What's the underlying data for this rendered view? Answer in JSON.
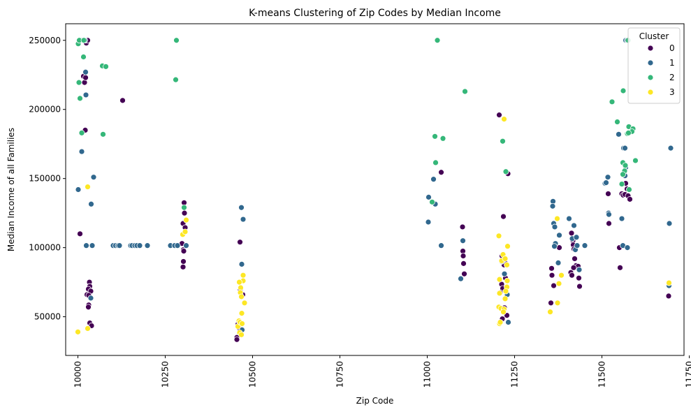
{
  "chart_data": {
    "type": "scatter",
    "title": "K-means Clustering of Zip Codes by Median Income",
    "xlabel": "Zip Code",
    "ylabel": "Median Income of all Families",
    "xlim": [
      9965,
      11735
    ],
    "ylim": [
      22000,
      262000
    ],
    "xticks": [
      10000,
      10250,
      10500,
      10750,
      11000,
      11250,
      11500,
      11750
    ],
    "yticks": [
      50000,
      100000,
      150000,
      200000,
      250000
    ],
    "grid": false,
    "legend": {
      "title": "Cluster",
      "position": "top-right"
    },
    "series": [
      {
        "name": "0",
        "color": "#440154",
        "points": [
          [
            10010,
            250000
          ],
          [
            10021,
            250000
          ],
          [
            10024,
            248000
          ],
          [
            10028,
            250000
          ],
          [
            10016,
            224000
          ],
          [
            10019,
            219500
          ],
          [
            10022,
            223000
          ],
          [
            10021,
            185000
          ],
          [
            10006,
            110000
          ],
          [
            10033,
            75000
          ],
          [
            10034,
            72000
          ],
          [
            10030,
            70000
          ],
          [
            10037,
            68500
          ],
          [
            10026,
            66000
          ],
          [
            10031,
            65500
          ],
          [
            10031,
            58500
          ],
          [
            10030,
            57000
          ],
          [
            10034,
            45500
          ],
          [
            10039,
            43500
          ],
          [
            10128,
            206500
          ],
          [
            10304,
            132500
          ],
          [
            10305,
            125000
          ],
          [
            10301,
            117500
          ],
          [
            10307,
            114500
          ],
          [
            10298,
            103000
          ],
          [
            10302,
            98500
          ],
          [
            10303,
            97500
          ],
          [
            10302,
            90000
          ],
          [
            10301,
            86000
          ],
          [
            10464,
            104000
          ],
          [
            10465,
            69500
          ],
          [
            10458,
            44500
          ],
          [
            10461,
            42000
          ],
          [
            10455,
            35000
          ],
          [
            10455,
            33500
          ],
          [
            10472,
            66000
          ],
          [
            11040,
            154500
          ],
          [
            11101,
            115000
          ],
          [
            11102,
            97500
          ],
          [
            11103,
            94000
          ],
          [
            11104,
            88500
          ],
          [
            11106,
            81000
          ],
          [
            11206,
            196000
          ],
          [
            11218,
            122500
          ],
          [
            11231,
            153500
          ],
          [
            11214,
            94000
          ],
          [
            11222,
            89500
          ],
          [
            11220,
            87500
          ],
          [
            11224,
            78000
          ],
          [
            11213,
            73500
          ],
          [
            11216,
            70500
          ],
          [
            11209,
            67500
          ],
          [
            11221,
            56500
          ],
          [
            11228,
            51000
          ],
          [
            11215,
            48500
          ],
          [
            11356,
            85000
          ],
          [
            11357,
            80000
          ],
          [
            11362,
            72500
          ],
          [
            11354,
            60000
          ],
          [
            11378,
            100000
          ],
          [
            11413,
            110500
          ],
          [
            11417,
            105000
          ],
          [
            11418,
            102000
          ],
          [
            11420,
            99000
          ],
          [
            11422,
            92000
          ],
          [
            11426,
            87000
          ],
          [
            11432,
            86500
          ],
          [
            11411,
            82000
          ],
          [
            11414,
            80000
          ],
          [
            11419,
            85500
          ],
          [
            11434,
            78000
          ],
          [
            11436,
            72000
          ],
          [
            11518,
            139000
          ],
          [
            11520,
            117500
          ],
          [
            11552,
            85500
          ],
          [
            11550,
            100000
          ],
          [
            11557,
            139000
          ],
          [
            11561,
            138000
          ],
          [
            11568,
            146500
          ],
          [
            11572,
            142500
          ],
          [
            11566,
            138500
          ],
          [
            11575,
            137500
          ],
          [
            11580,
            135000
          ],
          [
            11691,
            65000
          ]
        ]
      },
      {
        "name": "1",
        "color": "#31688e",
        "points": [
          [
            10001,
            142000
          ],
          [
            10003,
            250000
          ],
          [
            10013,
            250000
          ],
          [
            10022,
            227000
          ],
          [
            10023,
            210500
          ],
          [
            10011,
            169500
          ],
          [
            10024,
            101500
          ],
          [
            10041,
            101500
          ],
          [
            10045,
            151000
          ],
          [
            10038,
            131500
          ],
          [
            10037,
            63500
          ],
          [
            10020,
            250000
          ],
          [
            10101,
            101500
          ],
          [
            10108,
            101500
          ],
          [
            10115,
            101500
          ],
          [
            10119,
            101500
          ],
          [
            10151,
            101500
          ],
          [
            10155,
            101500
          ],
          [
            10163,
            101500
          ],
          [
            10169,
            101500
          ],
          [
            10177,
            101500
          ],
          [
            10199,
            101500
          ],
          [
            10265,
            101500
          ],
          [
            10277,
            101500
          ],
          [
            10285,
            101500
          ],
          [
            10310,
            101500
          ],
          [
            10468,
            129000
          ],
          [
            10473,
            120500
          ],
          [
            10469,
            88000
          ],
          [
            10470,
            40500
          ],
          [
            11004,
            136500
          ],
          [
            11003,
            118500
          ],
          [
            11018,
            149500
          ],
          [
            11023,
            131500
          ],
          [
            11040,
            101500
          ],
          [
            11096,
            77500
          ],
          [
            11102,
            105000
          ],
          [
            11213,
            90000
          ],
          [
            11221,
            81000
          ],
          [
            11229,
            66000
          ],
          [
            11232,
            46000
          ],
          [
            11360,
            133500
          ],
          [
            11359,
            130000
          ],
          [
            11362,
            117500
          ],
          [
            11365,
            115000
          ],
          [
            11367,
            103000
          ],
          [
            11364,
            101000
          ],
          [
            11375,
            89000
          ],
          [
            11378,
            109000
          ],
          [
            11406,
            121000
          ],
          [
            11415,
            106500
          ],
          [
            11420,
            116000
          ],
          [
            11427,
            107500
          ],
          [
            11424,
            98500
          ],
          [
            11435,
            84000
          ],
          [
            11429,
            101500
          ],
          [
            11451,
            101500
          ],
          [
            11509,
            146500
          ],
          [
            11517,
            151000
          ],
          [
            11512,
            147000
          ],
          [
            11519,
            125000
          ],
          [
            11520,
            124000
          ],
          [
            11548,
            182000
          ],
          [
            11557,
            121000
          ],
          [
            11561,
            101500
          ],
          [
            11560,
            101500
          ],
          [
            11562,
            172000
          ],
          [
            11566,
            172000
          ],
          [
            11568,
            158000
          ],
          [
            11566,
            152000
          ],
          [
            11568,
            250000
          ],
          [
            11572,
            250000
          ],
          [
            11573,
            100000
          ],
          [
            11697,
            172000
          ],
          [
            11693,
            117500
          ],
          [
            11692,
            72500
          ]
        ]
      },
      {
        "name": "2",
        "color": "#35b779",
        "points": [
          [
            10001,
            247500
          ],
          [
            10004,
            250000
          ],
          [
            10017,
            250000
          ],
          [
            10016,
            238000
          ],
          [
            10003,
            219500
          ],
          [
            10006,
            208000
          ],
          [
            10011,
            183000
          ],
          [
            10070,
            231500
          ],
          [
            10080,
            231000
          ],
          [
            10072,
            182000
          ],
          [
            10282,
            250000
          ],
          [
            10280,
            221500
          ],
          [
            10304,
            129000
          ],
          [
            11029,
            250000
          ],
          [
            11022,
            180500
          ],
          [
            11045,
            179000
          ],
          [
            11024,
            161500
          ],
          [
            11014,
            133000
          ],
          [
            11108,
            213000
          ],
          [
            11216,
            177000
          ],
          [
            11225,
            155000
          ],
          [
            11529,
            205500
          ],
          [
            11561,
            213500
          ],
          [
            11544,
            191000
          ],
          [
            11577,
            187500
          ],
          [
            11589,
            186000
          ],
          [
            11560,
            161500
          ],
          [
            11567,
            159500
          ],
          [
            11565,
            155500
          ],
          [
            11573,
            182500
          ],
          [
            11586,
            184000
          ],
          [
            11576,
            183000
          ],
          [
            11557,
            146000
          ],
          [
            11560,
            153000
          ],
          [
            11578,
            142000
          ],
          [
            11596,
            163000
          ],
          [
            11575,
            250000
          ]
        ]
      },
      {
        "name": "3",
        "color": "#fde725",
        "points": [
          [
            10000,
            39000
          ],
          [
            10028,
            144000
          ],
          [
            10028,
            41500
          ],
          [
            10300,
            109500
          ],
          [
            10307,
            111500
          ],
          [
            10310,
            120000
          ],
          [
            10461,
            47000
          ],
          [
            10458,
            43000
          ],
          [
            10463,
            38500
          ],
          [
            10468,
            37000
          ],
          [
            10464,
            46000
          ],
          [
            10470,
            45000
          ],
          [
            10473,
            80000
          ],
          [
            10473,
            76000
          ],
          [
            10462,
            75000
          ],
          [
            10466,
            71000
          ],
          [
            10465,
            67500
          ],
          [
            10468,
            64500
          ],
          [
            10477,
            60000
          ],
          [
            10469,
            52500
          ],
          [
            11205,
            108500
          ],
          [
            11207,
            77000
          ],
          [
            11207,
            67000
          ],
          [
            11205,
            57000
          ],
          [
            11211,
            56000
          ],
          [
            11207,
            45000
          ],
          [
            11209,
            46000
          ],
          [
            11213,
            90500
          ],
          [
            11217,
            95000
          ],
          [
            11220,
            193000
          ],
          [
            11223,
            92000
          ],
          [
            11230,
            101000
          ],
          [
            11228,
            87500
          ],
          [
            11229,
            76000
          ],
          [
            11228,
            71500
          ],
          [
            11225,
            68500
          ],
          [
            11223,
            63000
          ],
          [
            11220,
            55500
          ],
          [
            11218,
            53500
          ],
          [
            11352,
            53500
          ],
          [
            11372,
            121000
          ],
          [
            11373,
            60000
          ],
          [
            11377,
            74000
          ],
          [
            11384,
            80000
          ],
          [
            11692,
            74500
          ]
        ]
      }
    ]
  }
}
